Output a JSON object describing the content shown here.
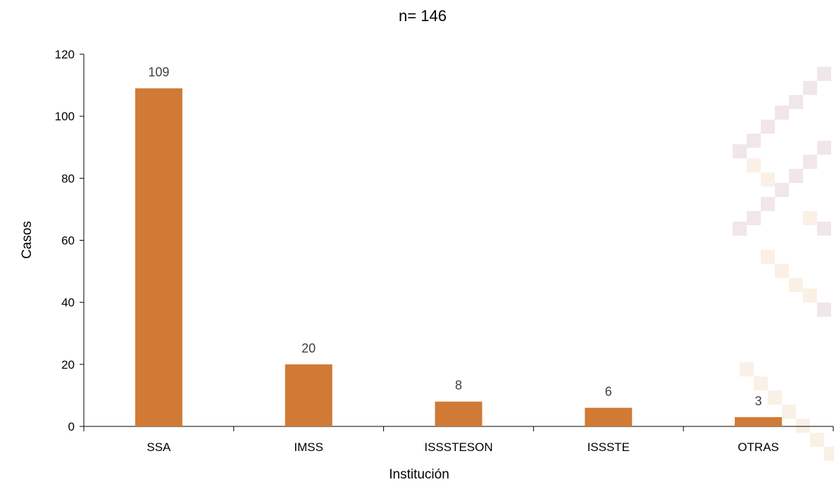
{
  "chart_data": {
    "type": "bar",
    "title": "n= 146",
    "xlabel": "Institución",
    "ylabel": "Casos",
    "categories": [
      "SSA",
      "IMSS",
      "ISSSTESON",
      "ISSSTE",
      "OTRAS"
    ],
    "values": [
      109,
      20,
      8,
      6,
      3
    ],
    "ylim": [
      0,
      120
    ],
    "yticks": [
      0,
      20,
      40,
      60,
      80,
      100,
      120
    ],
    "grid": false,
    "legend": "none",
    "data_labels": true
  },
  "colors": {
    "bar": "#D07A35",
    "axis": "#000000",
    "data_label": "#404040"
  }
}
